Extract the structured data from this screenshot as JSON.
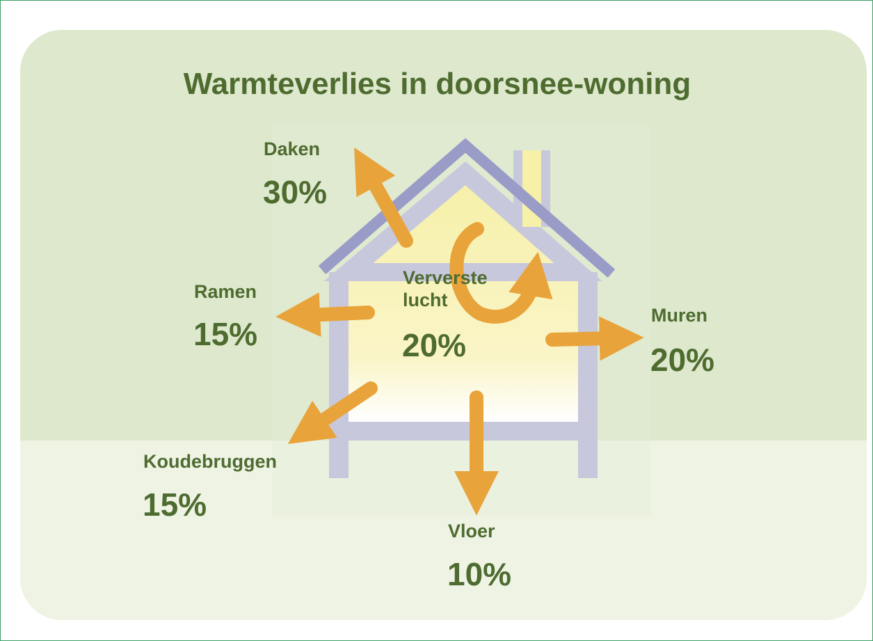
{
  "title": "Warmteverlies in doorsnee-woning",
  "items": [
    {
      "label": "Daken",
      "value": "30%"
    },
    {
      "label": "Ramen",
      "value": "15%"
    },
    {
      "label": "Ververste lucht",
      "value": "20%"
    },
    {
      "label": "Muren",
      "value": "20%"
    },
    {
      "label": "Koudebruggen",
      "value": "15%"
    },
    {
      "label": "Vloer",
      "value": "10%"
    }
  ]
}
